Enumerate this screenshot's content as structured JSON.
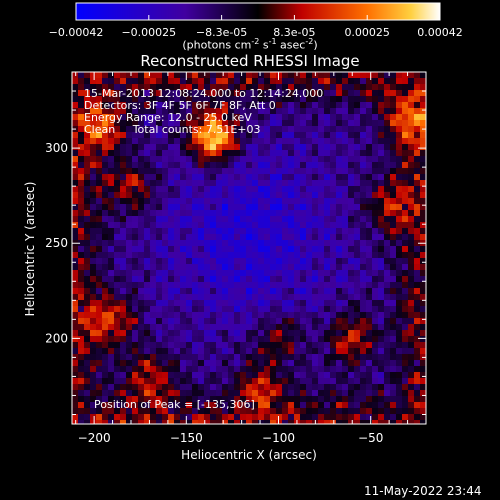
{
  "chart_data": {
    "type": "heatmap",
    "title": "Reconstructed RHESSI Image",
    "xlabel": "Heliocentric X (arcsec)",
    "ylabel": "Heliocentric Y (arcsec)",
    "xlim": [
      -212,
      -20
    ],
    "ylim": [
      155,
      340
    ],
    "xticks": [
      -200,
      -150,
      -100,
      -50
    ],
    "yticks": [
      200,
      250,
      300
    ],
    "colorbar": {
      "min": -0.00042,
      "max": 0.00042,
      "ticks": [
        "-0.00042",
        "-0.00025",
        "-8.3e-05",
        "8.3e-05",
        "0.00025",
        "0.00042"
      ],
      "unit": "(photons cm",
      "unit_sup1": "-2",
      "unit_mid": " s",
      "unit_sup2": "-1",
      "unit_mid2": " asec",
      "unit_sup3": "-2",
      "unit_end": ")",
      "colormap": "blue-purple-red-orange-yellow-white"
    },
    "annotations": [
      "15-Mar-2013 12:08:24.000 to 12:14:24.000",
      "Detectors: 3F 4F 5F 6F 7F 8F, Att 0",
      "Energy Range: 12.0 - 25.0 keV",
      "Clean     Total counts: 7.51E+03"
    ],
    "peak_label": "Position of Peak = [-135,306]",
    "peak": [
      -135,
      306
    ],
    "sources": [
      {
        "x": -135,
        "y": 306,
        "intensity": 1.0
      },
      {
        "x": -195,
        "y": 312,
        "intensity": 0.55
      },
      {
        "x": -180,
        "y": 280,
        "intensity": 0.45
      },
      {
        "x": -190,
        "y": 210,
        "intensity": 0.5
      },
      {
        "x": -170,
        "y": 180,
        "intensity": 0.45
      },
      {
        "x": -110,
        "y": 175,
        "intensity": 0.45
      },
      {
        "x": -60,
        "y": 200,
        "intensity": 0.5
      },
      {
        "x": -40,
        "y": 270,
        "intensity": 0.45
      },
      {
        "x": -30,
        "y": 315,
        "intensity": 0.5
      },
      {
        "x": -100,
        "y": 200,
        "intensity": 0.35
      }
    ]
  },
  "timestamp": "11-May-2022 23:44"
}
